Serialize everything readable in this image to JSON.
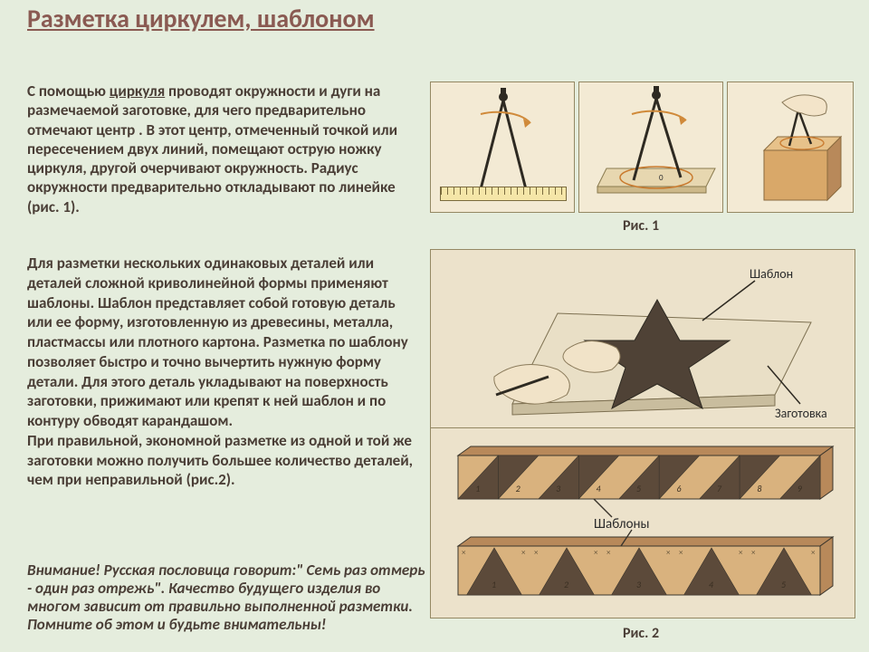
{
  "title": "Разметка циркулем, шаблоном",
  "para1_pre": "С помощью ",
  "para1_em": "циркуля",
  "para1_post": " проводят окружности и дуги на размечаемой заготовке, для чего предварительно отмечают центр . В этот центр, отмеченный точкой или пересечением двух линий, помещают острую ножку циркуля, другой очерчивают окружность.  Радиус окружности предварительно откладывают по линейке (рис. 1).",
  "para2_a": "Для разметки нескольких одинаковых деталей или деталей сложной криволинейной формы применяют шаблоны. ",
  "para2_b": "Шаблон",
  "para2_c": " представляет собой готовую деталь или ее форму, изготовленную из древесины, металла, пластмассы или плотного картона. Разметка по шаблону позволяет быстро и точно вычертить нужную форму детали.  Для этого деталь укладывают на поверхность заготовки, прижимают или крепят к ней шаблон и по контуру обводят карандашом.",
  "para2_d": "При правильной, экономной разметке из одной и той же заготовки  можно получить большее количество деталей, чем  при неправильной (рис.2).",
  "para3": "Внимание!  Русская пословица говорит:\" Семь раз отмерь - один раз отрежь\".  Качество будущего изделия во многом зависит от правильно выполненной разметки. Помните об этом и будьте внимательны!",
  "fig1_caption": "Рис. 1",
  "fig2_caption": "Рис. 2",
  "label_template": "Шаблон",
  "label_workpiece": "Заготовка",
  "label_templates": "Шаблоны",
  "colors": {
    "bg": "#e5eddd",
    "title": "#8a5a52",
    "text": "#4a3e36",
    "panel_bg": "#f3ead4",
    "panel_border": "#948863",
    "wood": "#d9b27e",
    "wood_dark": "#b8895a",
    "triangle": "#5c4a3a",
    "line": "#3a352c",
    "arc": "#d08a3a"
  },
  "fig2b_top": {
    "count": 9,
    "numbers": [
      "1",
      "2",
      "3",
      "4",
      "5",
      "6",
      "7",
      "8",
      "9"
    ]
  },
  "fig2b_bottom": {
    "count": 5,
    "numbers": [
      "1",
      "2",
      "3",
      "4",
      "5"
    ]
  }
}
